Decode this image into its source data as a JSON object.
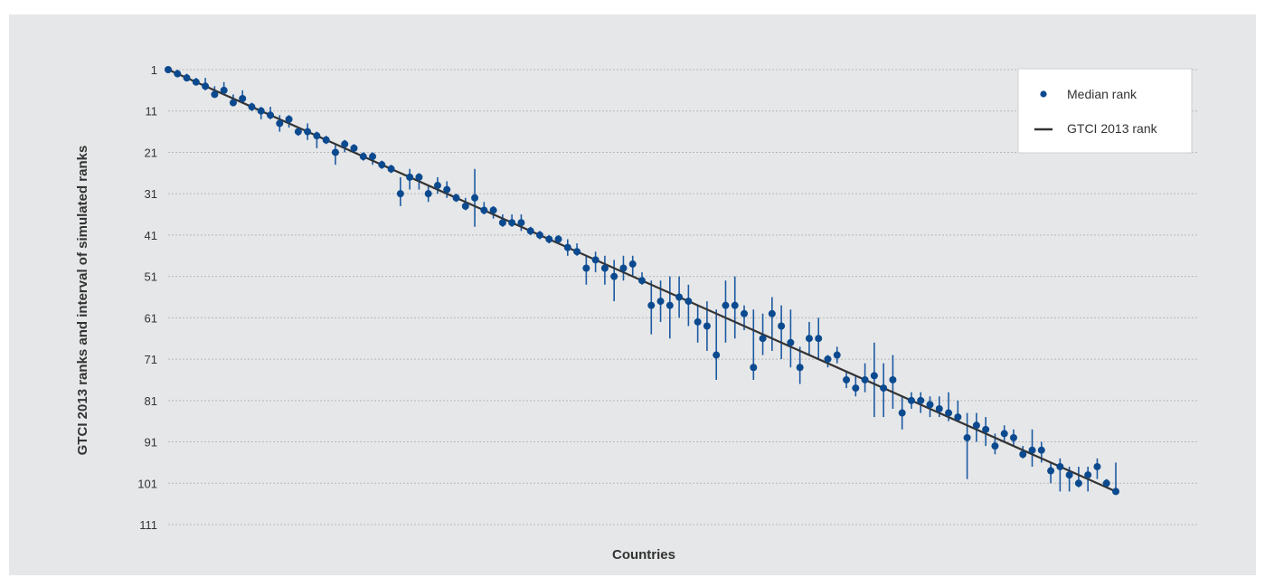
{
  "chart_data": {
    "type": "scatter",
    "xlabel": "Countries",
    "ylabel": "GTCI 2013 ranks and interval of simulated ranks",
    "ylim": [
      1,
      111
    ],
    "y_inverted": true,
    "y_ticks": [
      "1",
      "11",
      "21",
      "31",
      "41",
      "51",
      "61",
      "71",
      "81",
      "91",
      "101",
      "111"
    ],
    "grid": "horizontal dashed",
    "legend_position": "top-right",
    "series": [
      {
        "name": "Median rank",
        "marker": "dot",
        "color": "#0c4a8f"
      },
      {
        "name": "GTCI 2013 rank",
        "marker": "line",
        "color": "#333333"
      }
    ],
    "x": [
      1,
      2,
      3,
      4,
      5,
      6,
      7,
      8,
      9,
      10,
      11,
      12,
      13,
      14,
      15,
      16,
      17,
      18,
      19,
      20,
      21,
      22,
      23,
      24,
      25,
      26,
      27,
      28,
      29,
      30,
      31,
      32,
      33,
      34,
      35,
      36,
      37,
      38,
      39,
      40,
      41,
      42,
      43,
      44,
      45,
      46,
      47,
      48,
      49,
      50,
      51,
      52,
      53,
      54,
      55,
      56,
      57,
      58,
      59,
      60,
      61,
      62,
      63,
      64,
      65,
      66,
      67,
      68,
      69,
      70,
      71,
      72,
      73,
      74,
      75,
      76,
      77,
      78,
      79,
      80,
      81,
      82,
      83,
      84,
      85,
      86,
      87,
      88,
      89,
      90,
      91,
      92,
      93,
      94,
      95,
      96,
      97,
      98,
      99,
      100,
      101,
      102,
      103
    ],
    "gtci_rank": [
      1,
      2,
      3,
      4,
      5,
      6,
      7,
      8,
      9,
      10,
      11,
      12,
      13,
      14,
      15,
      16,
      17,
      18,
      19,
      20,
      21,
      22,
      23,
      24,
      25,
      26,
      27,
      28,
      29,
      30,
      31,
      32,
      33,
      34,
      35,
      36,
      37,
      38,
      39,
      40,
      41,
      42,
      43,
      44,
      45,
      46,
      47,
      48,
      49,
      50,
      51,
      52,
      53,
      54,
      55,
      56,
      57,
      58,
      59,
      60,
      61,
      62,
      63,
      64,
      65,
      66,
      67,
      68,
      69,
      70,
      71,
      72,
      73,
      74,
      75,
      76,
      77,
      78,
      79,
      80,
      81,
      82,
      83,
      84,
      85,
      86,
      87,
      88,
      89,
      90,
      91,
      92,
      93,
      94,
      95,
      96,
      97,
      98,
      99,
      100,
      101,
      102,
      103
    ],
    "median_rank": [
      1,
      2,
      3,
      4,
      5,
      7,
      6,
      9,
      8,
      10,
      11,
      12,
      14,
      13,
      16,
      16,
      17,
      18,
      21,
      19,
      20,
      22,
      22,
      24,
      25,
      31,
      27,
      27,
      31,
      29,
      30,
      32,
      34,
      32,
      35,
      35,
      38,
      38,
      38,
      40,
      41,
      42,
      42,
      44,
      45,
      49,
      47,
      49,
      51,
      49,
      48,
      52,
      58,
      57,
      58,
      56,
      57,
      62,
      63,
      70,
      58,
      58,
      60,
      73,
      66,
      60,
      63,
      67,
      73,
      66,
      66,
      71,
      70,
      76,
      78,
      76,
      75,
      78,
      76,
      84,
      81,
      81,
      82,
      83,
      84,
      85,
      90,
      87,
      88,
      92,
      89,
      90,
      94,
      93,
      93,
      98,
      97,
      99,
      101,
      99,
      97,
      101,
      103
    ],
    "interval_low": [
      1,
      1,
      2,
      3,
      3,
      5,
      4,
      7,
      6,
      9,
      10,
      10,
      12,
      12,
      15,
      14,
      16,
      17,
      19,
      18,
      19,
      21,
      21,
      23,
      24,
      27,
      25,
      26,
      29,
      27,
      28,
      31,
      32,
      25,
      33,
      34,
      36,
      36,
      36,
      39,
      40,
      41,
      41,
      42,
      43,
      46,
      45,
      46,
      47,
      46,
      46,
      50,
      52,
      52,
      51,
      51,
      53,
      58,
      57,
      59,
      52,
      51,
      58,
      59,
      60,
      56,
      58,
      59,
      68,
      62,
      61,
      70,
      68,
      74,
      75,
      72,
      67,
      72,
      70,
      80,
      79,
      79,
      80,
      80,
      79,
      81,
      84,
      84,
      85,
      89,
      87,
      88,
      92,
      88,
      91,
      96,
      95,
      97,
      97,
      97,
      95,
      100,
      96
    ],
    "interval_high": [
      1,
      2,
      3,
      4,
      6,
      7,
      7,
      9,
      9,
      11,
      13,
      13,
      16,
      15,
      17,
      18,
      20,
      19,
      24,
      21,
      21,
      23,
      24,
      25,
      26,
      34,
      30,
      30,
      33,
      31,
      32,
      33,
      35,
      39,
      36,
      37,
      39,
      39,
      40,
      41,
      42,
      43,
      43,
      46,
      46,
      53,
      50,
      53,
      57,
      52,
      51,
      53,
      65,
      62,
      66,
      61,
      63,
      67,
      69,
      76,
      67,
      66,
      64,
      76,
      70,
      69,
      71,
      73,
      77,
      70,
      71,
      73,
      72,
      78,
      80,
      79,
      85,
      85,
      83,
      88,
      83,
      84,
      85,
      85,
      86,
      86,
      100,
      91,
      92,
      94,
      91,
      92,
      95,
      97,
      96,
      101,
      103,
      103,
      102,
      103,
      100,
      102,
      103
    ]
  }
}
